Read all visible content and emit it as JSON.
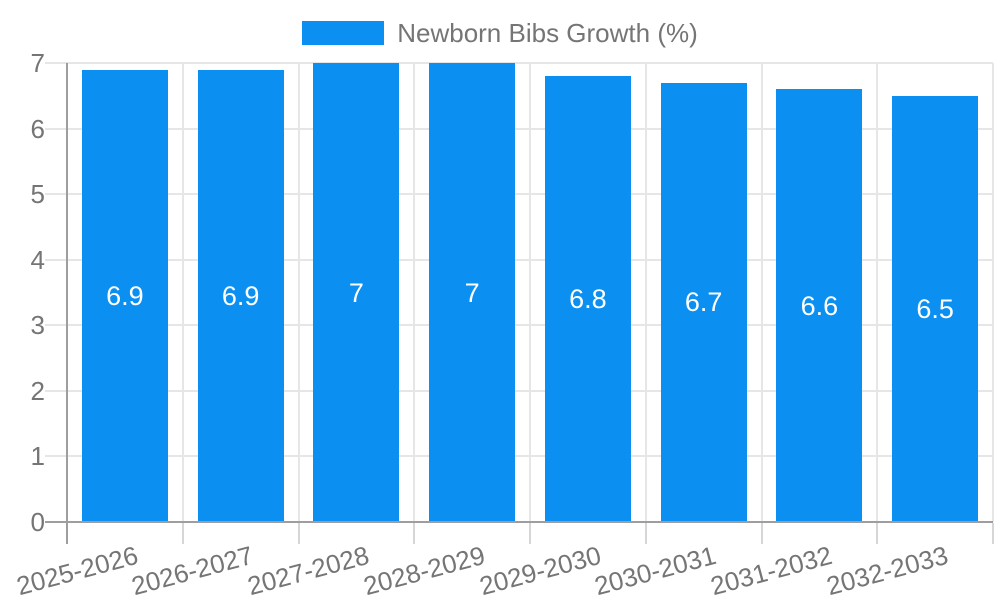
{
  "legend": {
    "items": [
      {
        "label": "Newborn Bibs Growth (%)"
      }
    ]
  },
  "chart_data": {
    "type": "bar",
    "title": "Newborn Bibs Growth (%)",
    "categories": [
      "2025-2026",
      "2026-2027",
      "2027-2028",
      "2028-2029",
      "2029-2030",
      "2030-2031",
      "2031-2032",
      "2032-2033"
    ],
    "values": [
      6.9,
      6.9,
      7,
      7,
      6.8,
      6.7,
      6.6,
      6.5
    ],
    "xlabel": "",
    "ylabel": "",
    "ylim": [
      0,
      7
    ],
    "yticks": [
      0,
      1,
      2,
      3,
      4,
      5,
      6,
      7
    ],
    "grid": true,
    "legend_position": "top-center",
    "x_label_rotation_deg": -15,
    "colors": {
      "bar": "#0b90f2",
      "bar_label": "#ffffff",
      "axis_text": "#757575",
      "gridline": "#e6e6e6",
      "axis_line": "#9e9e9e",
      "below_tick": "#d6d6d6",
      "background": "#ffffff"
    }
  }
}
